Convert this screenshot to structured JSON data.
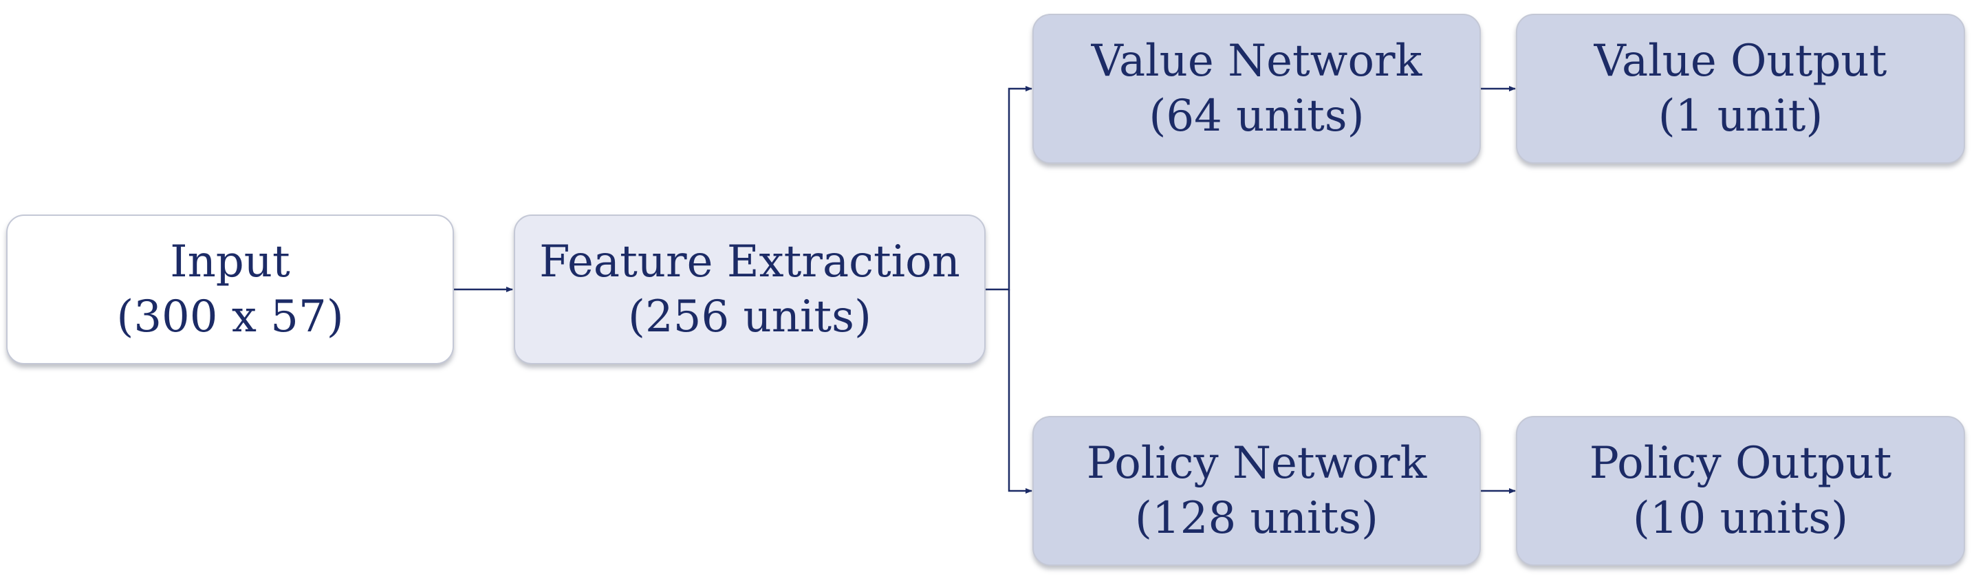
{
  "nodes": {
    "input": {
      "line1": "Input",
      "line2": "(300 x 57)"
    },
    "feature": {
      "line1": "Feature Extraction",
      "line2": "(256 units)"
    },
    "value_network": {
      "line1": "Value Network",
      "line2": "(64 units)"
    },
    "value_output": {
      "line1": "Value Output",
      "line2": "(1 unit)"
    },
    "policy_network": {
      "line1": "Policy Network",
      "line2": "(128 units)"
    },
    "policy_output": {
      "line1": "Policy Output",
      "line2": "(10 units)"
    }
  },
  "edges": [
    {
      "from": "input",
      "to": "feature_extraction"
    },
    {
      "from": "feature_extraction",
      "to": "value_network"
    },
    {
      "from": "feature_extraction",
      "to": "policy_network"
    },
    {
      "from": "value_network",
      "to": "value_output"
    },
    {
      "from": "policy_network",
      "to": "policy_output"
    }
  ],
  "colors": {
    "text": "#1c2b66",
    "edge": "#1c2b66",
    "input_fill": "#ffffff",
    "feature_fill": "#e8eaf4",
    "head_fill": "#cdd3e6",
    "border": "#c4c8d6"
  }
}
